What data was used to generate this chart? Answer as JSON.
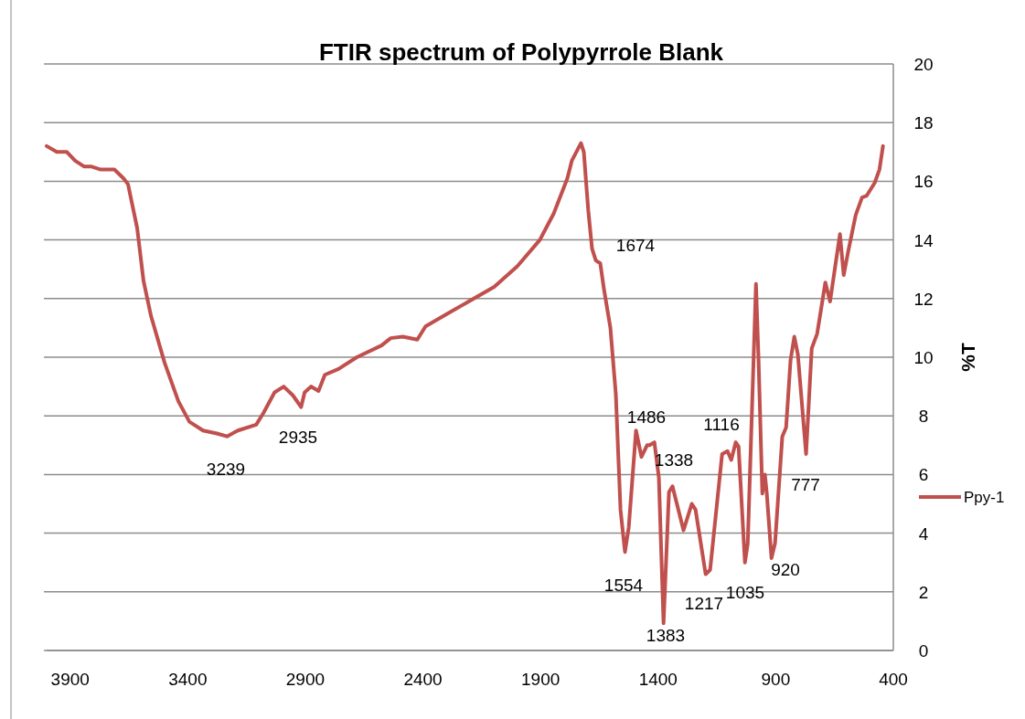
{
  "chart_data": {
    "type": "line",
    "title": "FTIR spectrum of Polypyrrole Blank",
    "ylabel": "%T",
    "xlim": [
      4000,
      400
    ],
    "xticks": [
      3900,
      3400,
      2900,
      2400,
      1900,
      1400,
      900,
      400
    ],
    "ylim": [
      0,
      20
    ],
    "yticks": [
      0,
      2,
      4,
      6,
      8,
      10,
      12,
      14,
      16,
      18,
      20
    ],
    "grid": "y",
    "legend": "right",
    "marker": "none",
    "line_style": "solid",
    "series": [
      {
        "name": "Ppy-1",
        "color": "#c0504d",
        "x": [
          4000,
          3957,
          3914,
          3879,
          3840,
          3809,
          3770,
          3743,
          3712,
          3673,
          3654,
          3615,
          3588,
          3556,
          3498,
          3440,
          3393,
          3335,
          3276,
          3233,
          3187,
          3109,
          3078,
          3031,
          2992,
          2953,
          2918,
          2903,
          2876,
          2844,
          2817,
          2759,
          2681,
          2576,
          2537,
          2486,
          2424,
          2389,
          2292,
          2097,
          1999,
          1903,
          1844,
          1786,
          1767,
          1728,
          1716,
          1697,
          1681,
          1665,
          1646,
          1630,
          1603,
          1580,
          1560,
          1541,
          1525,
          1494,
          1471,
          1447,
          1436,
          1416,
          1397,
          1377,
          1354,
          1339,
          1292,
          1257,
          1241,
          1198,
          1179,
          1128,
          1105,
          1089,
          1070,
          1058,
          1031,
          1019,
          984,
          973,
          957,
          946,
          938,
          918,
          903,
          872,
          856,
          837,
          821,
          806,
          771,
          747,
          724,
          689,
          669,
          627,
          611,
          592,
          560,
          533,
          514,
          479,
          459,
          444
        ],
        "values": [
          17.2,
          17.0,
          17.0,
          16.7,
          16.5,
          16.5,
          16.4,
          16.4,
          16.4,
          16.1,
          15.9,
          14.4,
          12.6,
          11.4,
          9.8,
          8.5,
          7.8,
          7.5,
          7.4,
          7.3,
          7.5,
          7.7,
          8.1,
          8.8,
          9.0,
          8.7,
          8.3,
          8.8,
          9.0,
          8.85,
          9.4,
          9.6,
          10.0,
          10.4,
          10.65,
          10.7,
          10.6,
          11.05,
          11.5,
          12.4,
          13.1,
          14.0,
          14.9,
          16.1,
          16.7,
          17.3,
          17.0,
          15.0,
          13.7,
          13.3,
          13.2,
          12.3,
          11.0,
          8.75,
          4.8,
          3.36,
          4.2,
          7.5,
          6.6,
          7.0,
          7.0,
          7.1,
          5.9,
          0.93,
          5.4,
          5.6,
          4.1,
          5.0,
          4.8,
          2.6,
          2.75,
          6.7,
          6.8,
          6.5,
          7.1,
          6.95,
          3.0,
          3.65,
          12.5,
          9.9,
          5.35,
          6.0,
          5.35,
          3.15,
          3.65,
          7.3,
          7.6,
          9.9,
          10.7,
          10.1,
          6.7,
          10.3,
          10.8,
          12.55,
          11.9,
          14.2,
          12.8,
          13.6,
          14.85,
          15.45,
          15.5,
          15.95,
          16.4,
          17.2
        ]
      }
    ],
    "annotations": [
      "3239",
      "2935",
      "1674",
      "1486",
      "1338",
      "1116",
      "777",
      "920",
      "1554",
      "1035",
      "1217",
      "1383"
    ]
  }
}
